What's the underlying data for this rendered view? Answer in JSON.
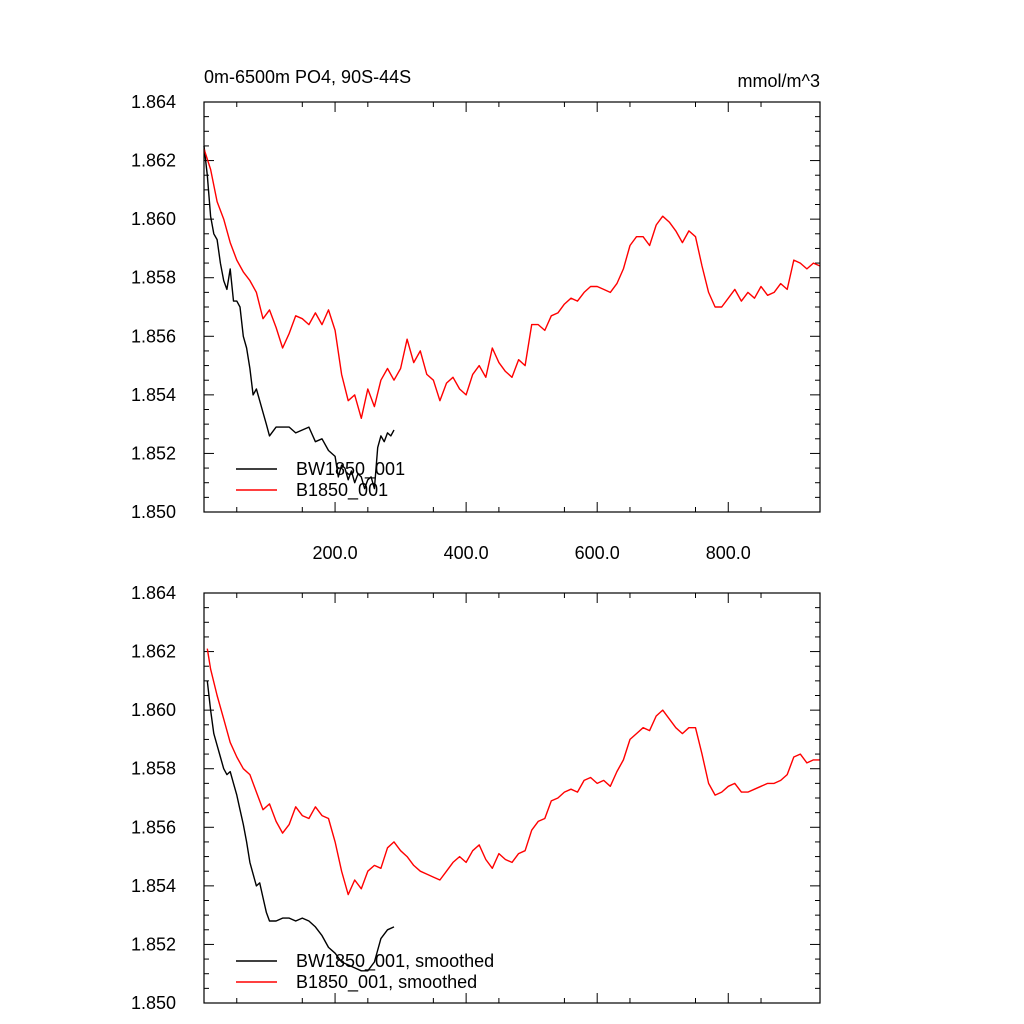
{
  "chart_data": [
    {
      "type": "line",
      "title": "0m-6500m PO4, 90S-44S",
      "units": "mmol/m^3",
      "xlim": [
        0,
        940
      ],
      "ylim": [
        1.85,
        1.864
      ],
      "x_ticks": [
        200,
        400,
        600,
        800
      ],
      "x_tick_labels": [
        "200.0",
        "400.0",
        "600.0",
        "800.0"
      ],
      "y_ticks": [
        1.85,
        1.852,
        1.854,
        1.856,
        1.858,
        1.86,
        1.862,
        1.864
      ],
      "y_tick_labels": [
        "1.850",
        "1.852",
        "1.854",
        "1.856",
        "1.858",
        "1.860",
        "1.862",
        "1.864"
      ],
      "legend_position": "bottom-left",
      "series": [
        {
          "name": "BW1850_001",
          "color": "#000000",
          "x": [
            0,
            5,
            10,
            15,
            20,
            25,
            30,
            35,
            40,
            45,
            50,
            55,
            60,
            65,
            70,
            75,
            80,
            85,
            90,
            95,
            100,
            110,
            120,
            130,
            140,
            150,
            160,
            170,
            180,
            190,
            200,
            205,
            210,
            215,
            220,
            225,
            230,
            235,
            240,
            245,
            250,
            255,
            260,
            265,
            270,
            275,
            280,
            285,
            290
          ],
          "y": [
            1.8625,
            1.8615,
            1.8601,
            1.8595,
            1.8593,
            1.8585,
            1.8579,
            1.8576,
            1.8583,
            1.8572,
            1.8572,
            1.857,
            1.856,
            1.8556,
            1.8549,
            1.854,
            1.8542,
            1.8538,
            1.8534,
            1.853,
            1.8526,
            1.8529,
            1.8529,
            1.8529,
            1.8527,
            1.8528,
            1.8529,
            1.8524,
            1.8525,
            1.8521,
            1.8519,
            1.8512,
            1.8516,
            1.8515,
            1.8511,
            1.8514,
            1.851,
            1.8513,
            1.8512,
            1.8508,
            1.8511,
            1.8512,
            1.8508,
            1.8522,
            1.8526,
            1.8524,
            1.8527,
            1.8526,
            1.8528
          ]
        },
        {
          "name": "B1850_001",
          "color": "#ff0000",
          "x": [
            0,
            10,
            20,
            30,
            40,
            50,
            60,
            70,
            80,
            90,
            100,
            110,
            120,
            130,
            140,
            150,
            160,
            170,
            180,
            190,
            200,
            210,
            220,
            230,
            240,
            250,
            260,
            270,
            280,
            290,
            300,
            310,
            320,
            330,
            340,
            350,
            360,
            370,
            380,
            390,
            400,
            410,
            420,
            430,
            440,
            450,
            460,
            470,
            480,
            490,
            500,
            510,
            520,
            530,
            540,
            550,
            560,
            570,
            580,
            590,
            600,
            610,
            620,
            630,
            640,
            650,
            660,
            670,
            680,
            690,
            700,
            710,
            720,
            730,
            740,
            750,
            760,
            770,
            780,
            790,
            800,
            810,
            820,
            830,
            840,
            850,
            860,
            870,
            880,
            890,
            900,
            910,
            920,
            930,
            940
          ],
          "y": [
            1.8624,
            1.8617,
            1.8606,
            1.86,
            1.8592,
            1.8586,
            1.8582,
            1.8579,
            1.8575,
            1.8566,
            1.8569,
            1.8563,
            1.8556,
            1.8561,
            1.8567,
            1.8566,
            1.8564,
            1.8568,
            1.8564,
            1.8569,
            1.8562,
            1.8547,
            1.8538,
            1.854,
            1.8532,
            1.8542,
            1.8536,
            1.8545,
            1.8549,
            1.8545,
            1.8549,
            1.8559,
            1.8551,
            1.8555,
            1.8547,
            1.8545,
            1.8538,
            1.8544,
            1.8546,
            1.8542,
            1.854,
            1.8547,
            1.855,
            1.8546,
            1.8556,
            1.8551,
            1.8548,
            1.8546,
            1.8552,
            1.855,
            1.8564,
            1.8564,
            1.8562,
            1.8567,
            1.8568,
            1.8571,
            1.8573,
            1.8572,
            1.8575,
            1.8577,
            1.8577,
            1.8576,
            1.8575,
            1.8578,
            1.8583,
            1.8591,
            1.8594,
            1.8594,
            1.8591,
            1.8598,
            1.8601,
            1.8599,
            1.8596,
            1.8592,
            1.8596,
            1.8594,
            1.8584,
            1.8575,
            1.857,
            1.857,
            1.8573,
            1.8576,
            1.8572,
            1.8575,
            1.8573,
            1.8577,
            1.8574,
            1.8575,
            1.8578,
            1.8576,
            1.8586,
            1.8585,
            1.8583,
            1.8585,
            1.8584
          ]
        }
      ]
    },
    {
      "type": "line",
      "title": "",
      "xlim": [
        0,
        940
      ],
      "ylim": [
        1.85,
        1.864
      ],
      "x_ticks": [
        200,
        400,
        600,
        800
      ],
      "x_tick_labels": [],
      "y_ticks": [
        1.85,
        1.852,
        1.854,
        1.856,
        1.858,
        1.86,
        1.862,
        1.864
      ],
      "y_tick_labels": [
        "1.850",
        "1.852",
        "1.854",
        "1.856",
        "1.858",
        "1.860",
        "1.862",
        "1.864"
      ],
      "legend_position": "bottom-left",
      "series": [
        {
          "name": "BW1850_001, smoothed",
          "color": "#000000",
          "x": [
            5,
            10,
            15,
            20,
            25,
            30,
            35,
            40,
            45,
            50,
            55,
            60,
            65,
            70,
            75,
            80,
            85,
            90,
            95,
            100,
            110,
            120,
            130,
            140,
            150,
            160,
            170,
            180,
            190,
            200,
            210,
            220,
            230,
            240,
            250,
            260,
            270,
            280,
            290
          ],
          "y": [
            1.861,
            1.86,
            1.8592,
            1.8588,
            1.8584,
            1.858,
            1.8578,
            1.8579,
            1.8575,
            1.8571,
            1.8566,
            1.8561,
            1.8555,
            1.8548,
            1.8544,
            1.854,
            1.8541,
            1.8536,
            1.8531,
            1.8528,
            1.8528,
            1.8529,
            1.8529,
            1.8528,
            1.8529,
            1.8528,
            1.8526,
            1.8523,
            1.8519,
            1.8517,
            1.8514,
            1.8513,
            1.8512,
            1.8511,
            1.8511,
            1.8514,
            1.8522,
            1.8525,
            1.8526
          ]
        },
        {
          "name": "B1850_001, smoothed",
          "color": "#ff0000",
          "x": [
            5,
            10,
            20,
            30,
            40,
            50,
            60,
            70,
            80,
            90,
            100,
            110,
            120,
            130,
            140,
            150,
            160,
            170,
            180,
            190,
            200,
            210,
            220,
            230,
            240,
            250,
            260,
            270,
            280,
            290,
            300,
            310,
            320,
            330,
            340,
            350,
            360,
            370,
            380,
            390,
            400,
            410,
            420,
            430,
            440,
            450,
            460,
            470,
            480,
            490,
            500,
            510,
            520,
            530,
            540,
            550,
            560,
            570,
            580,
            590,
            600,
            610,
            620,
            630,
            640,
            650,
            660,
            670,
            680,
            690,
            700,
            710,
            720,
            730,
            740,
            750,
            760,
            770,
            780,
            790,
            800,
            810,
            820,
            830,
            840,
            850,
            860,
            870,
            880,
            890,
            900,
            910,
            920,
            930,
            940
          ],
          "y": [
            1.8621,
            1.8614,
            1.8605,
            1.8597,
            1.8589,
            1.8584,
            1.858,
            1.8578,
            1.8572,
            1.8566,
            1.8568,
            1.8562,
            1.8558,
            1.8561,
            1.8567,
            1.8564,
            1.8563,
            1.8567,
            1.8564,
            1.8563,
            1.8555,
            1.8545,
            1.8537,
            1.8542,
            1.8539,
            1.8545,
            1.8547,
            1.8546,
            1.8553,
            1.8555,
            1.8552,
            1.855,
            1.8547,
            1.8545,
            1.8544,
            1.8543,
            1.8542,
            1.8545,
            1.8548,
            1.855,
            1.8548,
            1.8552,
            1.8554,
            1.8549,
            1.8546,
            1.8551,
            1.8549,
            1.8548,
            1.8551,
            1.8552,
            1.8559,
            1.8562,
            1.8563,
            1.8569,
            1.857,
            1.8572,
            1.8573,
            1.8572,
            1.8576,
            1.8577,
            1.8575,
            1.8576,
            1.8574,
            1.8579,
            1.8583,
            1.859,
            1.8592,
            1.8594,
            1.8593,
            1.8598,
            1.86,
            1.8597,
            1.8594,
            1.8592,
            1.8594,
            1.8594,
            1.8585,
            1.8575,
            1.8571,
            1.8572,
            1.8574,
            1.8575,
            1.8572,
            1.8572,
            1.8573,
            1.8574,
            1.8575,
            1.8575,
            1.8576,
            1.8578,
            1.8584,
            1.8585,
            1.8582,
            1.8583,
            1.8583
          ]
        }
      ]
    }
  ]
}
